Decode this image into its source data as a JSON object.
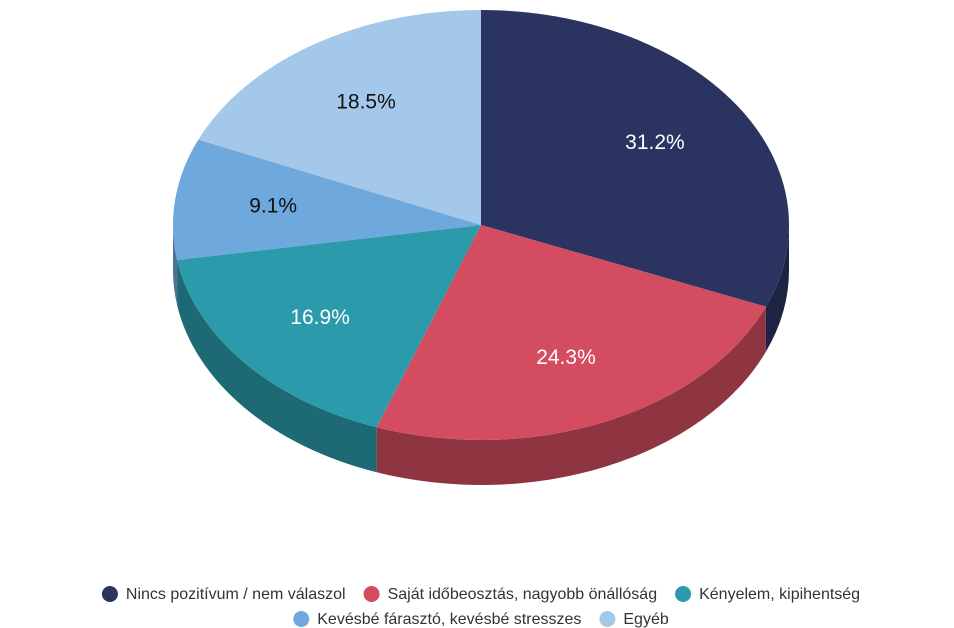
{
  "chart_data": {
    "type": "pie",
    "categories": [
      "Nincs pozitívum / nem válaszol",
      "Saját időbeosztás, nagyobb önállóság",
      "Kényelem, kipihentség",
      "Kevésbé fárasztó, kevésbé stresszes",
      "Egyéb"
    ],
    "values": [
      31.2,
      24.3,
      16.9,
      9.1,
      18.5
    ],
    "value_labels": [
      "31.2%",
      "24.3%",
      "16.9%",
      "9.1%",
      "18.5%"
    ],
    "colors": [
      "#2b3361",
      "#d34c60",
      "#2b9aab",
      "#6fa8dc",
      "#a4c8ea"
    ],
    "legend": "bottom"
  }
}
